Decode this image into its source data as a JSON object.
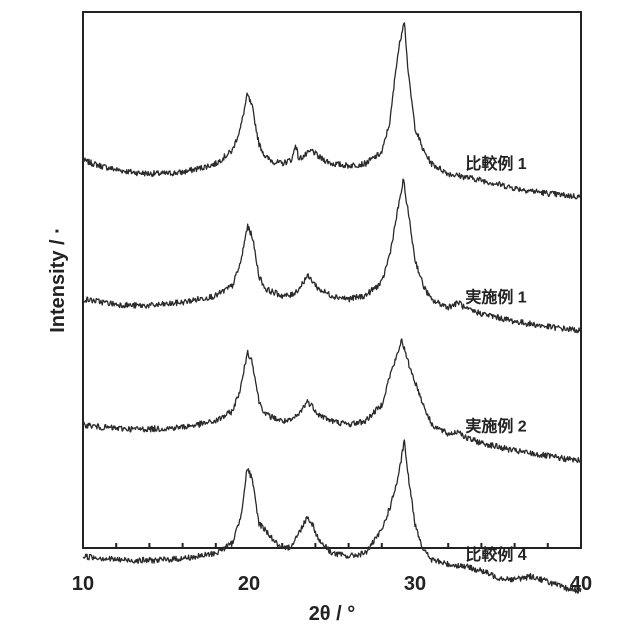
{
  "chart_data": {
    "type": "line",
    "xlabel": "2θ / °",
    "ylabel": "Intensity / ·",
    "xlim": [
      10,
      40
    ],
    "xticks": [
      10,
      20,
      30,
      40
    ],
    "minor_xticks": [
      12,
      14,
      16,
      18,
      22,
      24,
      26,
      28,
      32,
      34,
      36,
      38
    ],
    "grid": false,
    "legend": "inline labels at right",
    "line_color": "#2a2a2a",
    "series": [
      {
        "name": "比較例 1",
        "label": "比較例 1",
        "points": [
          [
            10,
            5.1
          ],
          [
            11,
            5.02
          ],
          [
            12,
            4.96
          ],
          [
            13,
            4.92
          ],
          [
            14,
            4.9
          ],
          [
            15,
            4.9
          ],
          [
            16,
            4.92
          ],
          [
            17,
            4.98
          ],
          [
            18,
            5.05
          ],
          [
            19,
            5.25
          ],
          [
            19.5,
            5.6
          ],
          [
            19.9,
            6.1
          ],
          [
            20.2,
            5.9
          ],
          [
            20.6,
            5.35
          ],
          [
            21,
            5.15
          ],
          [
            21.5,
            5.08
          ],
          [
            22,
            5.05
          ],
          [
            22.6,
            5.12
          ],
          [
            22.8,
            5.35
          ],
          [
            23,
            5.12
          ],
          [
            23.4,
            5.18
          ],
          [
            23.8,
            5.25
          ],
          [
            24.2,
            5.15
          ],
          [
            25,
            5.05
          ],
          [
            26,
            5.02
          ],
          [
            27,
            5.05
          ],
          [
            28,
            5.22
          ],
          [
            28.5,
            5.7
          ],
          [
            28.9,
            6.6
          ],
          [
            29.1,
            6.9
          ],
          [
            29.35,
            7.25
          ],
          [
            29.6,
            6.4
          ],
          [
            30,
            5.6
          ],
          [
            30.5,
            5.25
          ],
          [
            31,
            5.05
          ],
          [
            32,
            4.9
          ],
          [
            33,
            4.85
          ],
          [
            34,
            4.8
          ],
          [
            35,
            4.74
          ],
          [
            36,
            4.68
          ],
          [
            37,
            4.64
          ],
          [
            38,
            4.6
          ],
          [
            39,
            4.57
          ],
          [
            40,
            4.55
          ]
        ]
      },
      {
        "name": "実施例 1",
        "label": "実施例 1",
        "points": [
          [
            10,
            3.0
          ],
          [
            11,
            2.96
          ],
          [
            12,
            2.92
          ],
          [
            13,
            2.9
          ],
          [
            14,
            2.9
          ],
          [
            15,
            2.92
          ],
          [
            16,
            2.95
          ],
          [
            17,
            3.0
          ],
          [
            18,
            3.05
          ],
          [
            19,
            3.2
          ],
          [
            19.5,
            3.55
          ],
          [
            19.9,
            4.1
          ],
          [
            20.2,
            3.95
          ],
          [
            20.6,
            3.35
          ],
          [
            21,
            3.15
          ],
          [
            22,
            3.05
          ],
          [
            22.5,
            3.05
          ],
          [
            23,
            3.15
          ],
          [
            23.5,
            3.35
          ],
          [
            23.8,
            3.28
          ],
          [
            24.2,
            3.15
          ],
          [
            25,
            3.05
          ],
          [
            26,
            3.0
          ],
          [
            27,
            3.05
          ],
          [
            28,
            3.25
          ],
          [
            28.5,
            3.7
          ],
          [
            29,
            4.4
          ],
          [
            29.3,
            4.8
          ],
          [
            29.6,
            4.3
          ],
          [
            30,
            3.6
          ],
          [
            30.5,
            3.2
          ],
          [
            31,
            2.98
          ],
          [
            32,
            2.88
          ],
          [
            32.7,
            2.95
          ],
          [
            33,
            2.85
          ],
          [
            34,
            2.78
          ],
          [
            35,
            2.72
          ],
          [
            36,
            2.66
          ],
          [
            37,
            2.62
          ],
          [
            38,
            2.58
          ],
          [
            39,
            2.55
          ],
          [
            40,
            2.52
          ]
        ]
      },
      {
        "name": "実施例 2",
        "label": "実施例 2",
        "points": [
          [
            10,
            1.1
          ],
          [
            11,
            1.06
          ],
          [
            12,
            1.04
          ],
          [
            13,
            1.03
          ],
          [
            14,
            1.03
          ],
          [
            15,
            1.04
          ],
          [
            16,
            1.06
          ],
          [
            17,
            1.1
          ],
          [
            18,
            1.15
          ],
          [
            19,
            1.3
          ],
          [
            19.5,
            1.65
          ],
          [
            19.9,
            2.2
          ],
          [
            20.2,
            2.05
          ],
          [
            20.6,
            1.45
          ],
          [
            21,
            1.25
          ],
          [
            22,
            1.15
          ],
          [
            22.5,
            1.15
          ],
          [
            23,
            1.25
          ],
          [
            23.5,
            1.45
          ],
          [
            23.8,
            1.38
          ],
          [
            24.2,
            1.25
          ],
          [
            25,
            1.15
          ],
          [
            26,
            1.1
          ],
          [
            27,
            1.15
          ],
          [
            28,
            1.4
          ],
          [
            28.5,
            1.85
          ],
          [
            29,
            2.2
          ],
          [
            29.2,
            2.4
          ],
          [
            29.5,
            2.1
          ],
          [
            30,
            1.75
          ],
          [
            30.5,
            1.4
          ],
          [
            31,
            1.1
          ],
          [
            32,
            0.95
          ],
          [
            32.7,
            1.0
          ],
          [
            33,
            0.9
          ],
          [
            34,
            0.82
          ],
          [
            35,
            0.76
          ],
          [
            36,
            0.7
          ],
          [
            37,
            0.66
          ],
          [
            38,
            0.62
          ],
          [
            39,
            0.58
          ],
          [
            40,
            0.55
          ]
        ]
      },
      {
        "name": "比較例 4",
        "label": "比較例 4",
        "points": [
          [
            10,
            -0.9
          ],
          [
            11,
            -0.92
          ],
          [
            12,
            -0.95
          ],
          [
            13,
            -0.96
          ],
          [
            14,
            -0.96
          ],
          [
            15,
            -0.95
          ],
          [
            16,
            -0.93
          ],
          [
            17,
            -0.9
          ],
          [
            18,
            -0.85
          ],
          [
            19,
            -0.7
          ],
          [
            19.5,
            -0.3
          ],
          [
            19.9,
            0.45
          ],
          [
            20.2,
            0.25
          ],
          [
            20.6,
            -0.4
          ],
          [
            21,
            -0.5
          ],
          [
            21.3,
            -0.6
          ],
          [
            22,
            -0.8
          ],
          [
            22.5,
            -0.75
          ],
          [
            23,
            -0.55
          ],
          [
            23.5,
            -0.3
          ],
          [
            23.8,
            -0.4
          ],
          [
            24.2,
            -0.65
          ],
          [
            25,
            -0.85
          ],
          [
            26,
            -0.9
          ],
          [
            27,
            -0.85
          ],
          [
            27.6,
            -0.65
          ],
          [
            28,
            -0.5
          ],
          [
            28.5,
            -0.15
          ],
          [
            29,
            0.3
          ],
          [
            29.35,
            0.85
          ],
          [
            29.6,
            0.3
          ],
          [
            30,
            -0.4
          ],
          [
            30.5,
            -0.8
          ],
          [
            31,
            -0.95
          ],
          [
            32,
            -1.02
          ],
          [
            33,
            -1.05
          ],
          [
            34,
            -1.12
          ],
          [
            35,
            -1.22
          ],
          [
            36,
            -1.25
          ],
          [
            37,
            -1.2
          ],
          [
            38,
            -1.28
          ],
          [
            39,
            -1.38
          ],
          [
            40,
            -1.42
          ]
        ]
      }
    ]
  }
}
